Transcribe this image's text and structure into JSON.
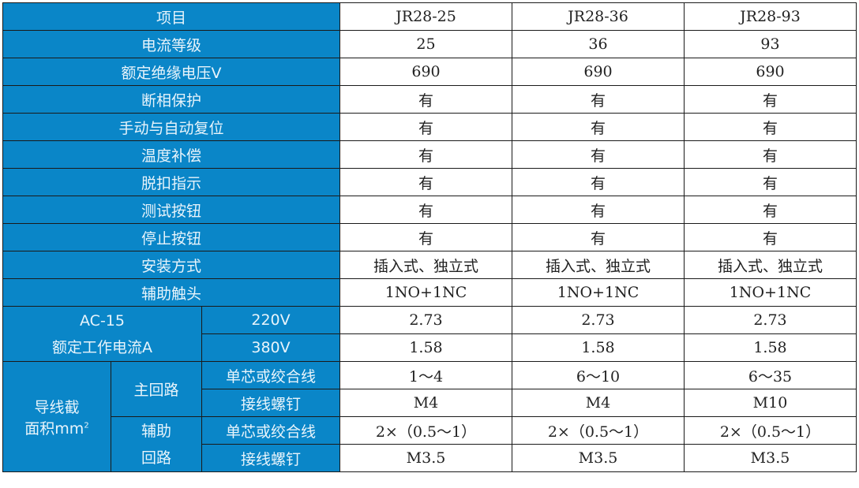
{
  "header": {
    "label": "项目",
    "models": [
      "JR28-25",
      "JR28-36",
      "JR28-93"
    ]
  },
  "rows": [
    {
      "label": "电流等级",
      "values": [
        "25",
        "36",
        "93"
      ]
    },
    {
      "label": "额定绝缘电压V",
      "values": [
        "690",
        "690",
        "690"
      ]
    },
    {
      "label": "断相保护",
      "values": [
        "有",
        "有",
        "有"
      ]
    },
    {
      "label": "手动与自动复位",
      "values": [
        "有",
        "有",
        "有"
      ]
    },
    {
      "label": "温度补偿",
      "values": [
        "有",
        "有",
        "有"
      ]
    },
    {
      "label": "脱扣指示",
      "values": [
        "有",
        "有",
        "有"
      ]
    },
    {
      "label": "测试按钮",
      "values": [
        "有",
        "有",
        "有"
      ]
    },
    {
      "label": "停止按钮",
      "values": [
        "有",
        "有",
        "有"
      ]
    },
    {
      "label": "安装方式",
      "values": [
        "插入式、独立式",
        "插入式、独立式",
        "插入式、独立式"
      ]
    },
    {
      "label": "辅助触头",
      "values": [
        "1NO+1NC",
        "1NO+1NC",
        "1NO+1NC"
      ]
    }
  ],
  "ac15": {
    "label_line1": "AC-15",
    "label_line2": "额定工作电流A",
    "rows": [
      {
        "label": "220V",
        "values": [
          "2.73",
          "2.73",
          "2.73"
        ]
      },
      {
        "label": "380V",
        "values": [
          "1.58",
          "1.58",
          "1.58"
        ]
      }
    ]
  },
  "wire": {
    "label_line1": "导线截",
    "label_line2": "面积mm",
    "label_sup": "2",
    "main": {
      "label": "主回路",
      "rows": [
        {
          "label": "单芯或绞合线",
          "values": [
            "1～4",
            "6～10",
            "6～35"
          ]
        },
        {
          "label": "接线螺钉",
          "values": [
            "M4",
            "M4",
            "M10"
          ]
        }
      ]
    },
    "aux": {
      "label_line1": "辅助",
      "label_line2": "回路",
      "rows": [
        {
          "label": "单芯或绞合线",
          "values": [
            "2×（0.5～1）",
            "2×（0.5～1）",
            "2×（0.5～1）"
          ]
        },
        {
          "label": "接线螺钉",
          "values": [
            "M3.5",
            "M3.5",
            "M3.5"
          ]
        }
      ]
    }
  },
  "colors": {
    "header_bg": "#0a86c8",
    "header_text": "#e8f4fb",
    "border": "#1a1a1a"
  }
}
